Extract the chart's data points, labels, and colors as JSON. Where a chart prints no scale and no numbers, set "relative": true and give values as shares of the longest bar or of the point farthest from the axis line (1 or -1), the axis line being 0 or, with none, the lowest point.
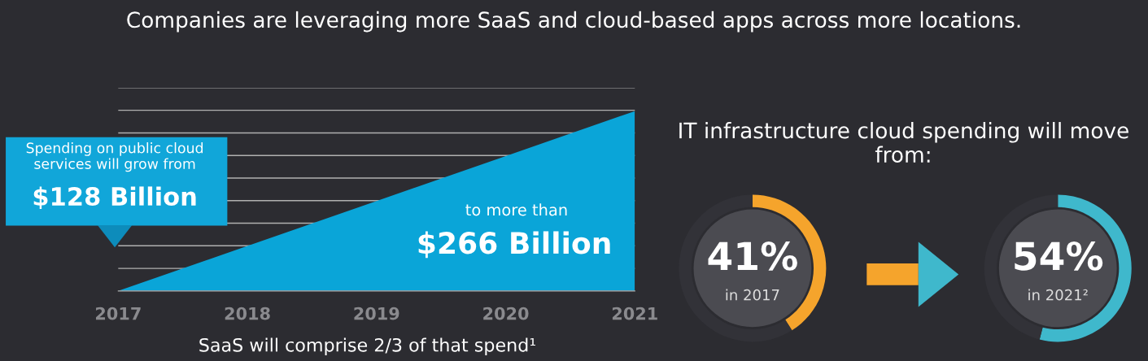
{
  "chart_data": [
    {
      "type": "area",
      "title": "Companies are leveraging more SaaS and cloud-based apps across more locations.",
      "categories": [
        "2017",
        "2018",
        "2019",
        "2020",
        "2021"
      ],
      "relative": true,
      "grid": "y",
      "series": [
        {
          "color": "#0aa5d8",
          "values": [
            0,
            0.25,
            0.5,
            0.75,
            1
          ]
        }
      ],
      "annotations": [
        "Spending on public cloud services will grow from",
        "$128 Billion",
        "to more than",
        "$266 Billion",
        "SaaS will comprise 2/3 of that spend¹"
      ]
    },
    {
      "type": "donut",
      "title": "IT infrastructure cloud spending will move from:",
      "categories": [
        null,
        null
      ],
      "values": [
        41,
        59
      ],
      "colors": [
        "#f5a42c",
        "#323238"
      ],
      "annotations": [
        "41%",
        "in 2017"
      ]
    },
    {
      "type": "donut",
      "categories": [
        null,
        null
      ],
      "values": [
        54,
        46
      ],
      "colors": [
        "#3fb8cc",
        "#323238"
      ],
      "annotations": [
        "54%",
        "in 2021²"
      ]
    }
  ]
}
